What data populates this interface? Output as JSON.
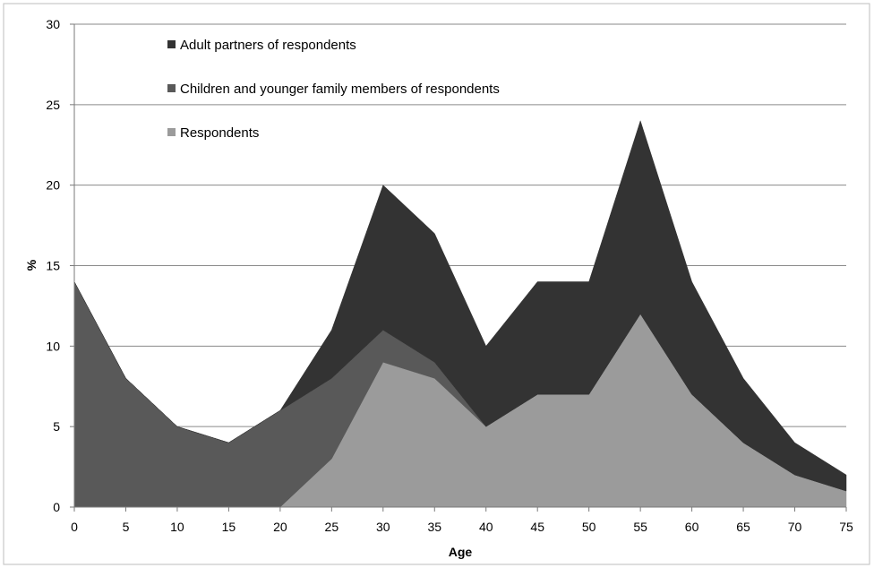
{
  "chart_data": {
    "type": "area",
    "stacked": true,
    "x": [
      0,
      5,
      10,
      15,
      20,
      25,
      30,
      35,
      40,
      45,
      50,
      55,
      60,
      65,
      70,
      75
    ],
    "xlabel": "Age",
    "ylabel": "%",
    "ylim": [
      0,
      30
    ],
    "yticks": [
      0,
      5,
      10,
      15,
      20,
      25,
      30
    ],
    "grid": "horizontal",
    "legend_position": "top-left",
    "series": [
      {
        "name": "Respondents",
        "color": "#9b9b9b",
        "values": [
          0,
          0,
          0,
          0,
          0,
          3,
          9,
          8,
          5,
          7,
          7,
          12,
          7,
          4,
          2,
          1
        ]
      },
      {
        "name": "Children and younger family members of respondents",
        "color": "#595959",
        "values": [
          14,
          8,
          5,
          4,
          6,
          5,
          2,
          1,
          0,
          0,
          0,
          0,
          0,
          0,
          0,
          0
        ]
      },
      {
        "name": "Adult partners of respondents",
        "color": "#333333",
        "values": [
          0,
          0,
          0,
          0,
          0,
          3,
          9,
          8,
          5,
          7,
          7,
          12,
          7,
          4,
          2,
          1
        ]
      }
    ],
    "legend_order": [
      "Adult partners of respondents",
      "Children and younger family members of respondents",
      "Respondents"
    ]
  }
}
